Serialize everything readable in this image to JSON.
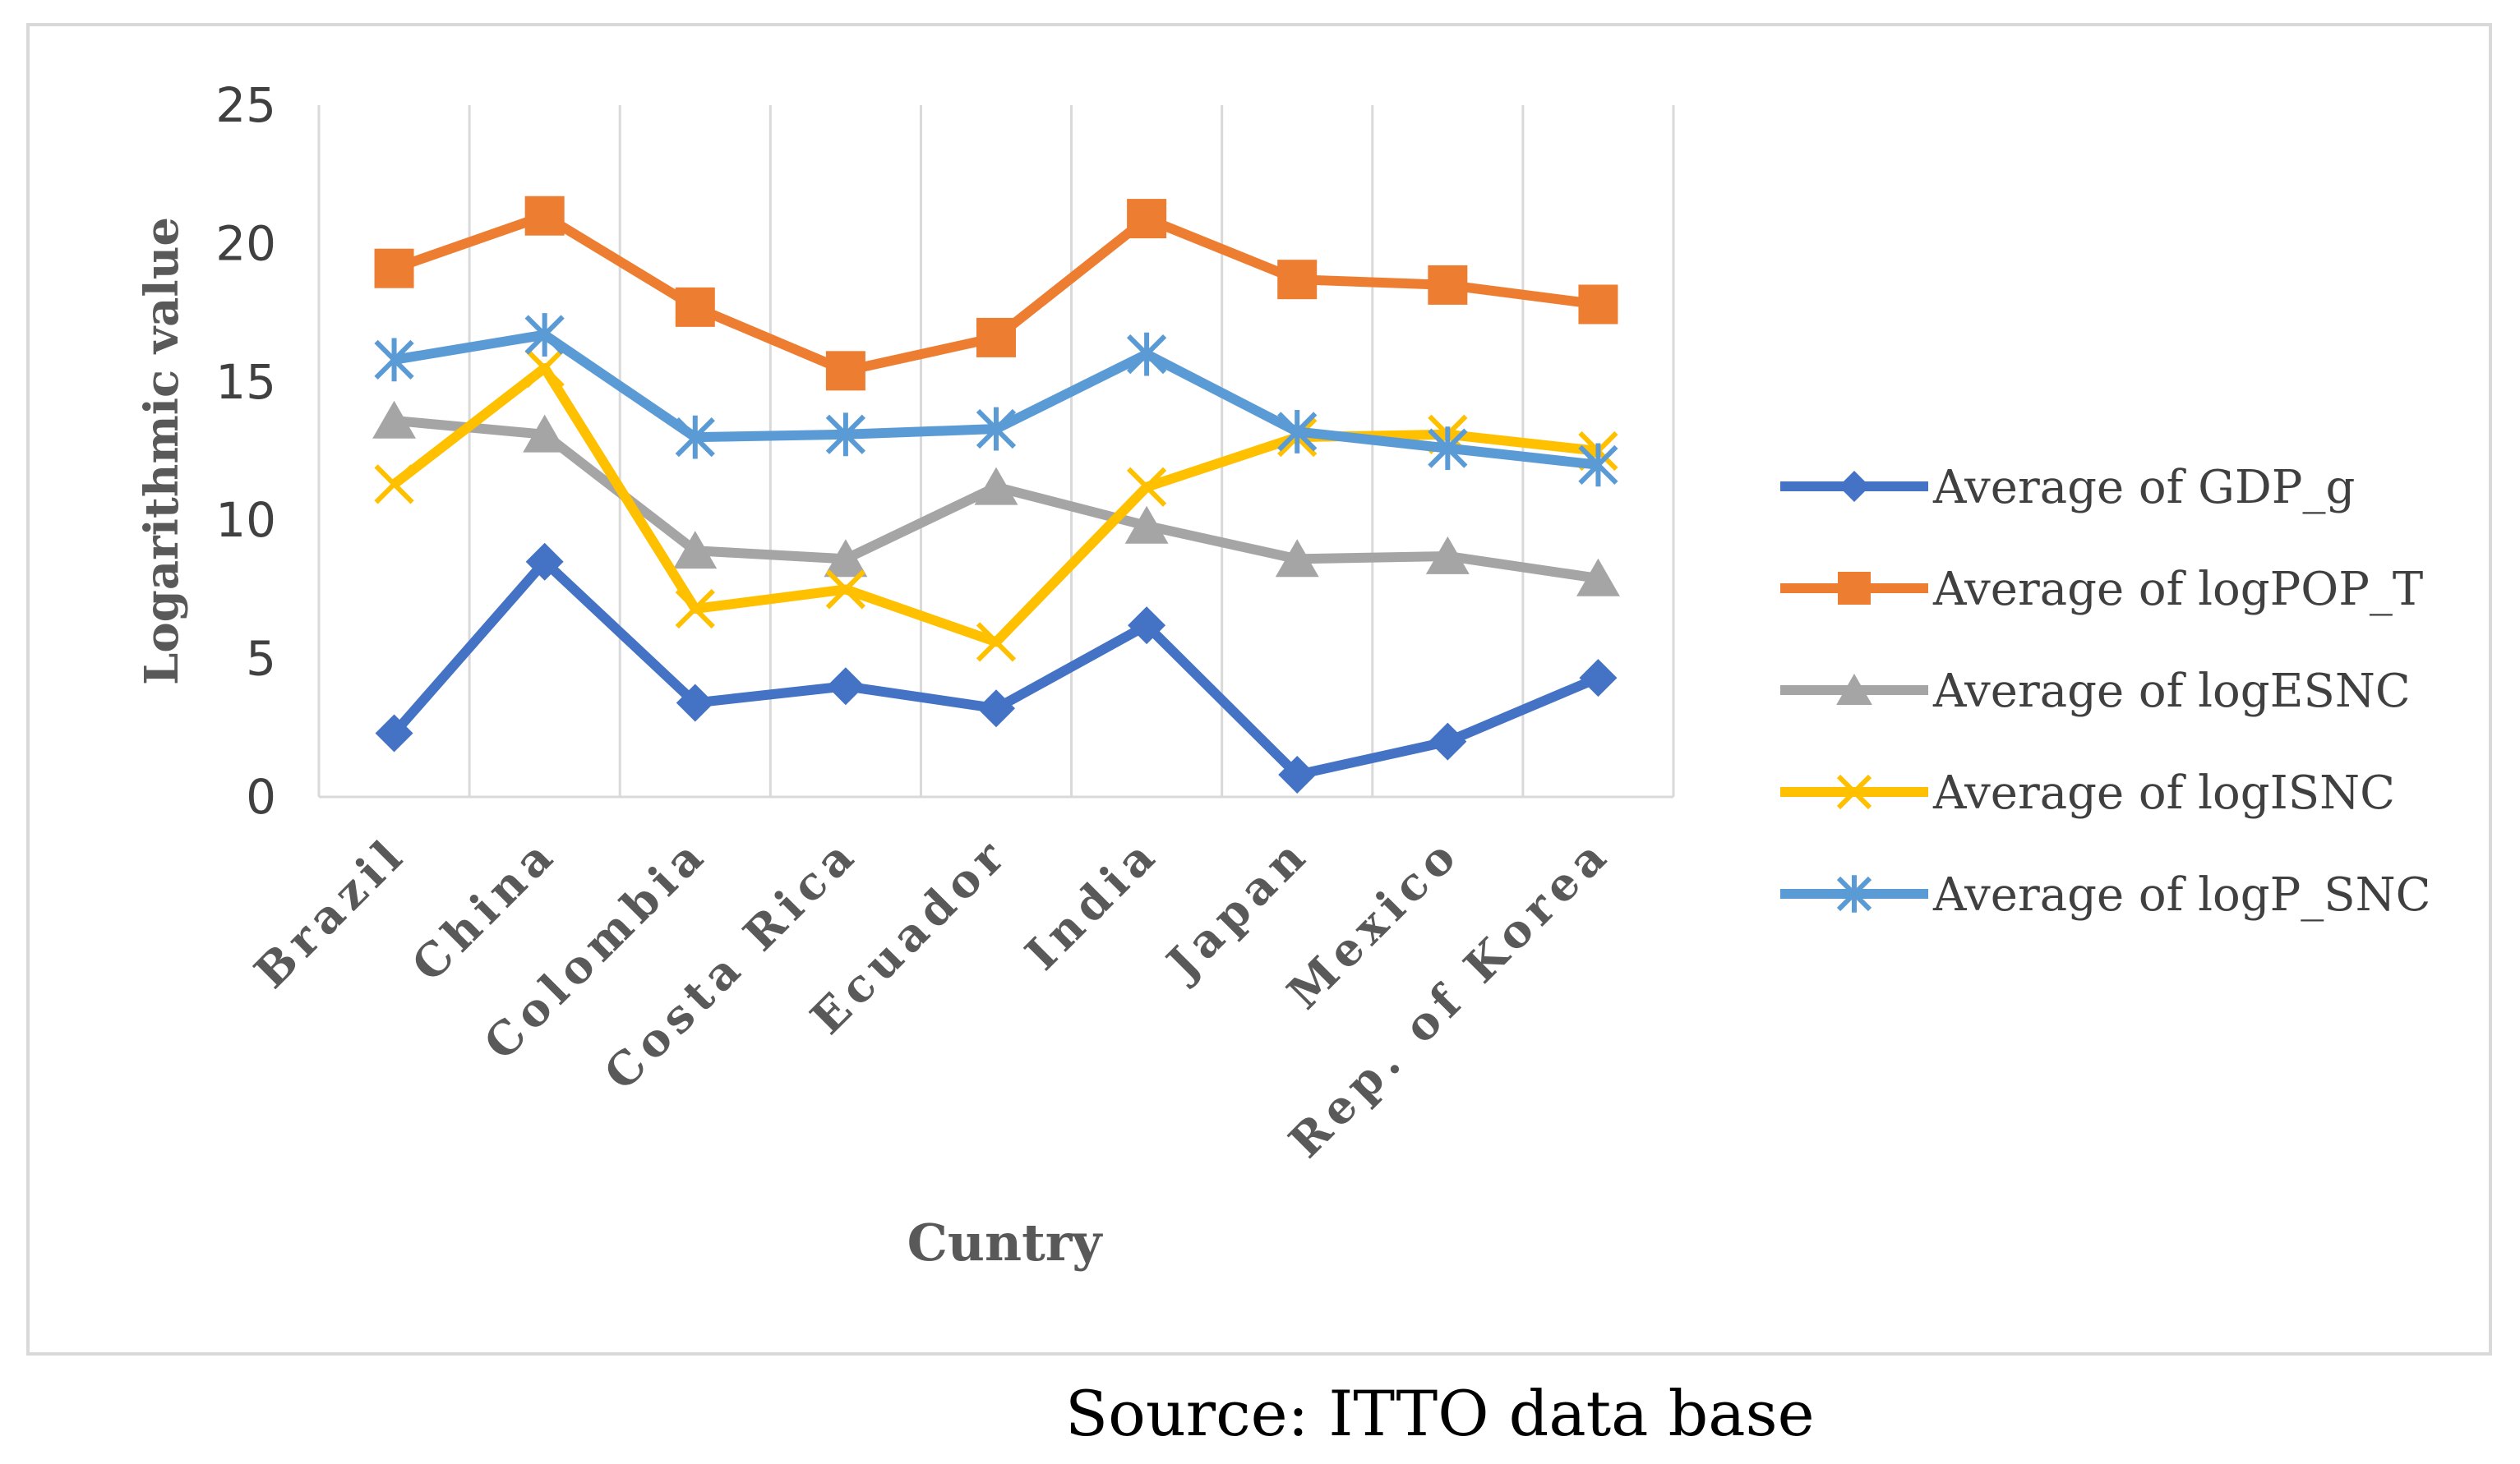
{
  "chart_data": {
    "type": "line",
    "title": "",
    "xlabel": "Cuntry",
    "ylabel": "Logarithmic value",
    "categories": [
      "Brazil",
      "China",
      "Colombia",
      "Costa Rica",
      "Ecuador",
      "India",
      "Japan",
      "Mexico",
      "Rep. of Korea"
    ],
    "ylim": [
      0,
      25
    ],
    "yticks": [
      "0",
      "5",
      "10",
      "15",
      "20",
      "25"
    ],
    "grid": "vertical",
    "legend_position": "right",
    "series": [
      {
        "name": "Average of GDP_g",
        "color": "#4472C4",
        "marker": "diamond",
        "values": [
          2.3,
          8.5,
          3.4,
          4.0,
          3.2,
          6.2,
          0.8,
          2.0,
          4.3
        ]
      },
      {
        "name": "Average of logPOP_T",
        "color": "#ED7D31",
        "marker": "square",
        "values": [
          19.1,
          21.0,
          17.7,
          15.4,
          16.6,
          20.9,
          18.7,
          18.5,
          17.8
        ]
      },
      {
        "name": "Average of logESNC",
        "color": "#A5A5A5",
        "marker": "triangle",
        "values": [
          13.6,
          13.1,
          8.9,
          8.6,
          11.2,
          9.8,
          8.6,
          8.7,
          7.9
        ]
      },
      {
        "name": "Average of logISNC",
        "color": "#FFC000",
        "marker": "x",
        "values": [
          11.3,
          15.5,
          6.8,
          7.5,
          5.6,
          11.2,
          13.0,
          13.1,
          12.5
        ]
      },
      {
        "name": "Average of logP_SNC",
        "color": "#5B9BD5",
        "marker": "asterisk",
        "values": [
          15.8,
          16.7,
          13.0,
          13.1,
          13.3,
          16.0,
          13.2,
          12.6,
          12.0
        ]
      }
    ]
  },
  "source": "Source: ITTO data base"
}
